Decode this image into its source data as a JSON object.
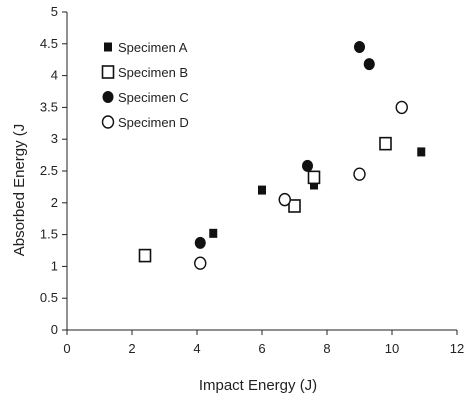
{
  "chart_data": {
    "type": "scatter",
    "title": "",
    "xlabel": "Impact Energy (J)",
    "ylabel": "Absorbed Energy (J",
    "xlim": [
      0,
      12
    ],
    "ylim": [
      0,
      5
    ],
    "xticks": [
      "0",
      "2",
      "4",
      "6",
      "8",
      "10",
      "12"
    ],
    "yticks": [
      "0",
      "0.5",
      "1",
      "1.5",
      "2",
      "2.5",
      "3",
      "3.5",
      "4",
      "4.5",
      "5"
    ],
    "grid": false,
    "legend_position": "top-left",
    "series": [
      {
        "name": "Specimen A",
        "marker": "small-filled-square",
        "color": "#111111",
        "points": [
          [
            4.5,
            1.52
          ],
          [
            6.0,
            2.2
          ],
          [
            7.6,
            2.28
          ],
          [
            10.9,
            2.8
          ]
        ]
      },
      {
        "name": "Specimen B",
        "marker": "open-square",
        "color": "#111111",
        "points": [
          [
            2.4,
            1.17
          ],
          [
            7.0,
            1.95
          ],
          [
            7.6,
            2.4
          ],
          [
            9.8,
            2.93
          ]
        ]
      },
      {
        "name": "Specimen C",
        "marker": "filled-circle",
        "color": "#111111",
        "points": [
          [
            4.1,
            1.37
          ],
          [
            7.4,
            2.58
          ],
          [
            9.0,
            4.45
          ],
          [
            9.3,
            4.18
          ]
        ]
      },
      {
        "name": "Specimen D",
        "marker": "open-circle",
        "color": "#111111",
        "points": [
          [
            4.1,
            1.05
          ],
          [
            6.7,
            2.05
          ],
          [
            9.0,
            2.45
          ],
          [
            10.3,
            3.5
          ]
        ]
      }
    ]
  }
}
